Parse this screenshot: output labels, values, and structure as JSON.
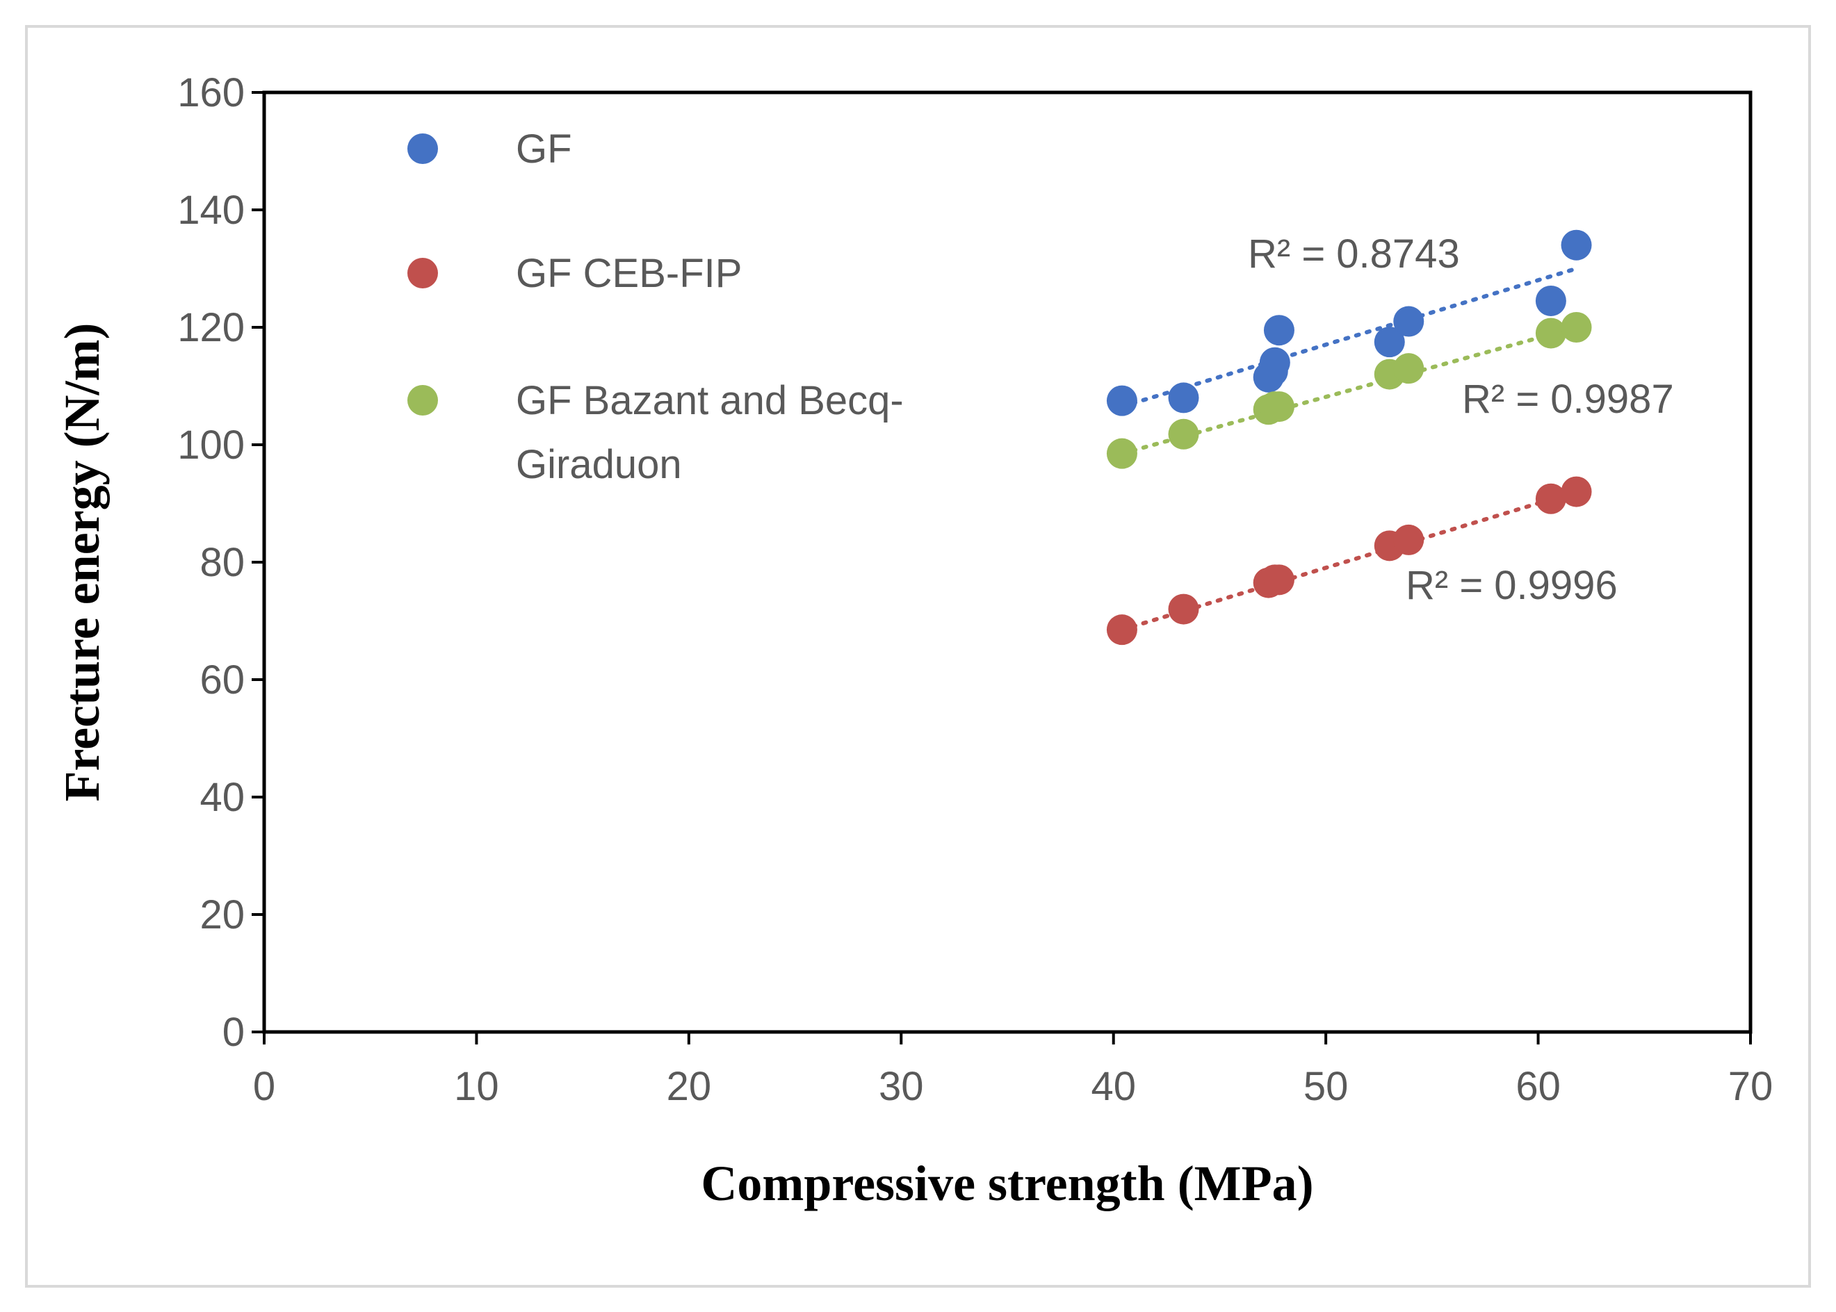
{
  "chart_data": {
    "type": "scatter",
    "title": "",
    "xlabel": "Compressive strength (MPa)",
    "ylabel": "Frecture energy (N/m)",
    "xlim": [
      0,
      70
    ],
    "ylim": [
      0,
      160
    ],
    "x_ticks": [
      0,
      10,
      20,
      30,
      40,
      50,
      60,
      70
    ],
    "y_ticks": [
      0,
      20,
      40,
      60,
      80,
      100,
      120,
      140,
      160
    ],
    "grid": false,
    "legend_position": "top-left",
    "series": [
      {
        "name": "GF",
        "color": "#4472C4",
        "points": [
          [
            40.4,
            107.5
          ],
          [
            43.3,
            108.0
          ],
          [
            47.3,
            111.5
          ],
          [
            47.5,
            112.5
          ],
          [
            47.6,
            114.0
          ],
          [
            47.8,
            119.5
          ],
          [
            53.0,
            117.5
          ],
          [
            53.9,
            121.0
          ],
          [
            60.6,
            124.5
          ],
          [
            61.8,
            134.0
          ]
        ],
        "trendline": {
          "x": [
            40.4,
            61.8
          ],
          "y": [
            106.5,
            130.0
          ]
        },
        "r2_label": "R² = 0.8743"
      },
      {
        "name": "GF CEB-FIP",
        "color": "#C0504D",
        "points": [
          [
            40.4,
            68.5
          ],
          [
            43.3,
            72.0
          ],
          [
            47.3,
            76.5
          ],
          [
            47.6,
            77.0
          ],
          [
            47.8,
            77.0
          ],
          [
            53.0,
            82.8
          ],
          [
            53.9,
            83.8
          ],
          [
            60.6,
            90.8
          ],
          [
            61.8,
            92.0
          ]
        ],
        "trendline": {
          "x": [
            40.4,
            61.8
          ],
          "y": [
            68.5,
            92.0
          ]
        },
        "r2_label": "R² = 0.9996"
      },
      {
        "name": "GF Bazant and Becq-Giraduon",
        "color": "#9BBB59",
        "points": [
          [
            40.4,
            98.5
          ],
          [
            43.3,
            101.8
          ],
          [
            47.3,
            106.0
          ],
          [
            47.6,
            106.5
          ],
          [
            47.8,
            106.5
          ],
          [
            53.0,
            112.0
          ],
          [
            53.9,
            113.0
          ],
          [
            60.6,
            119.0
          ],
          [
            61.8,
            120.0
          ]
        ],
        "trendline": {
          "x": [
            40.4,
            61.8
          ],
          "y": [
            98.5,
            120.0
          ]
        },
        "r2_label": "R² = 0.9987"
      }
    ]
  }
}
